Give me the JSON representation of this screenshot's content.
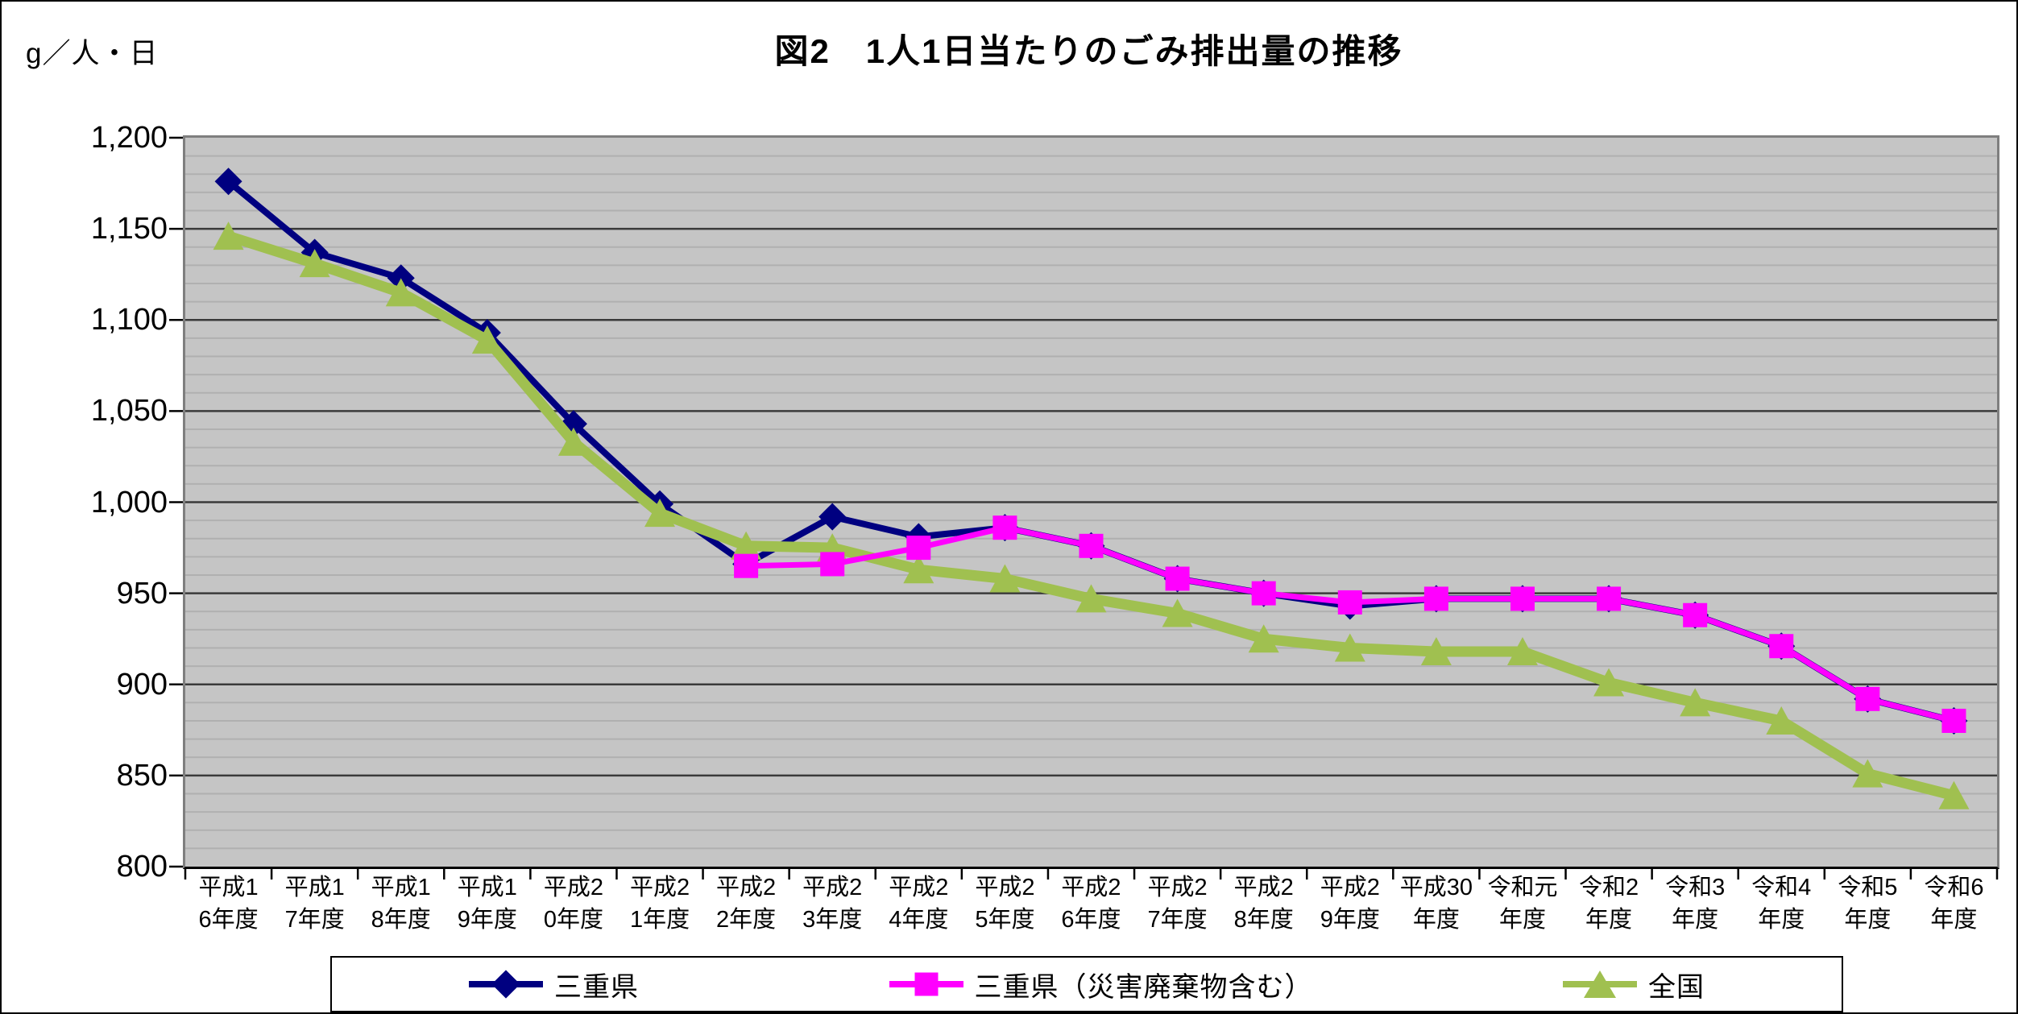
{
  "chart": {
    "title": "図2　1人1日当たりのごみ排出量の推移",
    "unit_label": "g／人・日",
    "y_axis": {
      "tick_labels": [
        "1,200",
        "1,150",
        "1,100",
        "1,050",
        "1,000",
        "950",
        "900",
        "850",
        "800"
      ],
      "tick_values": [
        1200,
        1150,
        1100,
        1050,
        1000,
        950,
        900,
        850,
        800
      ]
    },
    "x_axis": {
      "labels_line1": [
        "平成1",
        "平成1",
        "平成1",
        "平成1",
        "平成2",
        "平成2",
        "平成2",
        "平成2",
        "平成2",
        "平成2",
        "平成2",
        "平成2",
        "平成2",
        "平成2",
        "平成30",
        "令和元",
        "令和2",
        "令和3",
        "令和4",
        "令和5",
        "令和6"
      ],
      "labels_line2": [
        "6年度",
        "7年度",
        "8年度",
        "9年度",
        "0年度",
        "1年度",
        "2年度",
        "3年度",
        "4年度",
        "5年度",
        "6年度",
        "7年度",
        "8年度",
        "9年度",
        "年度",
        "年度",
        "年度",
        "年度",
        "年度",
        "年度",
        "年度"
      ]
    },
    "legend": [
      {
        "label": "三重県",
        "color": "#000080",
        "marker": "diamond"
      },
      {
        "label": "三重県（災害廃棄物含む）",
        "color": "#FF00FF",
        "marker": "square"
      },
      {
        "label": "全国",
        "color": "#A0C050",
        "marker": "triangle"
      }
    ],
    "colors": {
      "plot_background": "#C5C5C5",
      "major_gridline": "#3A3A3A",
      "minor_gridline": "#B0B0B0",
      "axis": "#000000"
    }
  },
  "chart_data": {
    "type": "line",
    "title": "図2　1人1日当たりのごみ排出量の推移",
    "ylabel": "g／人・日",
    "ylim": [
      800,
      1200
    ],
    "y_major_unit": 50,
    "y_minor_unit": 10,
    "grid": "major+minor horizontal",
    "legend_position": "bottom",
    "categories": [
      "平成16年度",
      "平成17年度",
      "平成18年度",
      "平成19年度",
      "平成20年度",
      "平成21年度",
      "平成22年度",
      "平成23年度",
      "平成24年度",
      "平成25年度",
      "平成26年度",
      "平成27年度",
      "平成28年度",
      "平成29年度",
      "平成30年度",
      "令和元年度",
      "令和2年度",
      "令和3年度",
      "令和4年度",
      "令和5年度",
      "令和6年度"
    ],
    "series": [
      {
        "name": "三重県",
        "color": "#000080",
        "marker": "diamond",
        "line_width": 8,
        "values": [
          1176,
          1137,
          1123,
          1093,
          1043,
          999,
          966,
          992,
          981,
          986,
          976,
          958,
          950,
          943,
          947,
          947,
          947,
          938,
          921,
          892,
          880
        ]
      },
      {
        "name": "三重県（災害廃棄物含む）",
        "color": "#FF00FF",
        "marker": "square",
        "line_width": 7,
        "values": [
          null,
          null,
          null,
          null,
          null,
          null,
          965,
          966,
          975,
          986,
          976,
          958,
          950,
          945,
          947,
          947,
          947,
          938,
          921,
          892,
          880
        ]
      },
      {
        "name": "全国",
        "color": "#A0C050",
        "marker": "triangle",
        "line_width": 13,
        "values": [
          1146,
          1131,
          1115,
          1089,
          1033,
          994,
          976,
          975,
          963,
          958,
          947,
          939,
          925,
          920,
          918,
          918,
          901,
          890,
          880,
          851,
          839
        ]
      }
    ],
    "draw_order": [
      0,
      2,
      1
    ]
  }
}
